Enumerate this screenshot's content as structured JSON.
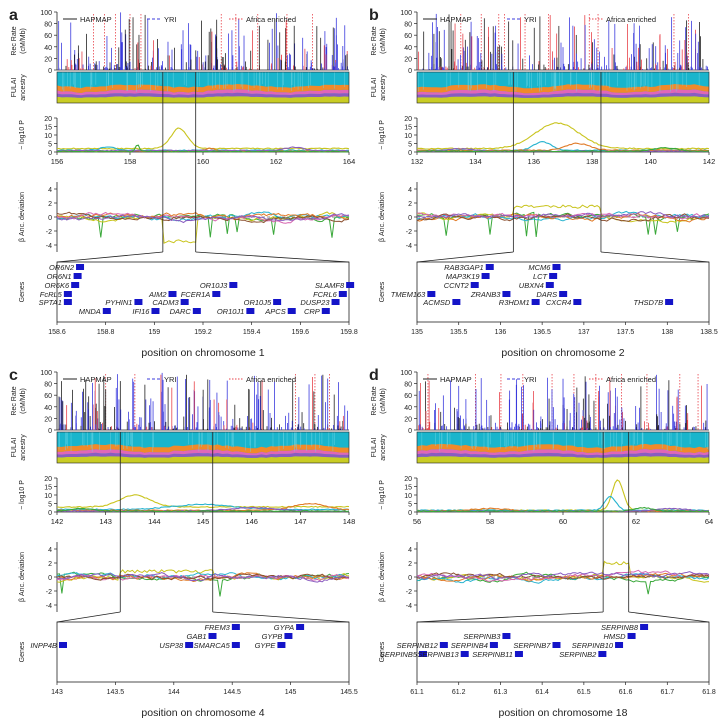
{
  "figure": {
    "legend": {
      "hapmap": "HAPMAP",
      "yri": "YRI",
      "africa": "Africa enriched"
    },
    "labels": {
      "rec_rate_1": "Rec Rate",
      "rec_rate_2": "(cM/Mb)",
      "fulai_1": "FULAI",
      "fulai_2": "ancestry",
      "logp": "− log10 P",
      "anc_dev": "β Anc. deviation",
      "genes": "Genes"
    },
    "colors": {
      "hapmap": "#222222",
      "yri": "#3b3bdd",
      "africa": "#e8434b",
      "fill_cyan": "#19b5cc",
      "fill_orange": "#f08a2a",
      "fill_pink": "#e066b8",
      "fill_purple": "#8a5cc0",
      "fill_yellow": "#c9cc24",
      "gene": "#1414c8",
      "gene_red": "#e02020",
      "series": [
        "#3aa83a",
        "#c9c41e",
        "#27b3cf",
        "#e07a27",
        "#d666b0",
        "#8b4f2f",
        "#8a5cc0",
        "#111111"
      ]
    }
  },
  "chart_data": [
    {
      "type": "line",
      "panel_label": "a",
      "xlabel": "position on chromosome 1",
      "overview": {
        "xlim": [
          156,
          164
        ],
        "xticks": [
          156,
          158,
          160,
          162,
          164
        ],
        "rec_ylim": [
          0,
          100
        ],
        "rec_yticks": [
          0,
          20,
          40,
          60,
          80,
          100
        ],
        "logp_ylim": [
          0,
          20
        ],
        "logp_yticks": [
          0,
          5,
          10,
          15,
          20
        ],
        "dev_ylim": [
          -5,
          5
        ],
        "dev_yticks": [
          -4,
          -2,
          0,
          2,
          4
        ],
        "zoom": [
          158.9,
          159.8
        ],
        "africa_x": [
          157.0,
          157.3,
          157.6,
          158.0,
          158.3,
          160.5,
          160.9,
          161.5,
          162.3,
          163.0
        ],
        "logp_series": [
          {
            "peak_x": 159.35,
            "width": 0.45,
            "height": 12,
            "base": 2.0
          },
          {
            "peak_x": 157.4,
            "width": 0.4,
            "height": 2,
            "base": 1.0
          },
          {
            "peak_x": 160.2,
            "width": 0.3,
            "height": 1.5,
            "base": 0.5
          },
          {
            "peak_x": 162.5,
            "width": 0.5,
            "height": 2,
            "base": 0.8
          },
          {
            "peak_x": 158.2,
            "width": 0.1,
            "height": 4,
            "base": 0.3
          }
        ],
        "dev_dip": {
          "x": [
            158.9,
            159.8
          ],
          "value": -3.5
        }
      },
      "genes": {
        "xlim": [
          158.6,
          159.8
        ],
        "xticks": [
          158.6,
          158.8,
          159,
          159.2,
          159.4,
          159.6,
          159.8
        ],
        "items": [
          {
            "name": "OR6N2",
            "x": 158.67,
            "row": 0,
            "red": false
          },
          {
            "name": "OR6N1",
            "x": 158.66,
            "row": 1,
            "red": false
          },
          {
            "name": "OR6K6",
            "x": 158.65,
            "row": 2,
            "red": false
          },
          {
            "name": "FcRL5",
            "x": 158.62,
            "row": 3,
            "red": false
          },
          {
            "name": "SPTA1",
            "x": 158.62,
            "row": 4,
            "red": false
          },
          {
            "name": "MNDA",
            "x": 158.78,
            "row": 5,
            "red": false
          },
          {
            "name": "PYHIN1",
            "x": 158.91,
            "row": 4,
            "red": false
          },
          {
            "name": "IFI16",
            "x": 158.98,
            "row": 5,
            "red": false
          },
          {
            "name": "AIM2",
            "x": 159.05,
            "row": 3,
            "red": false
          },
          {
            "name": "CADM3",
            "x": 159.1,
            "row": 4,
            "red": false
          },
          {
            "name": "DARC",
            "x": 159.15,
            "row": 5,
            "red": true
          },
          {
            "name": "FCER1A",
            "x": 159.23,
            "row": 3,
            "red": false
          },
          {
            "name": "OR10J3",
            "x": 159.3,
            "row": 2,
            "red": false
          },
          {
            "name": "OR10J1",
            "x": 159.37,
            "row": 5,
            "red": false
          },
          {
            "name": "OR10J5",
            "x": 159.48,
            "row": 4,
            "red": false
          },
          {
            "name": "APCS",
            "x": 159.54,
            "row": 5,
            "red": false
          },
          {
            "name": "CRP",
            "x": 159.68,
            "row": 5,
            "red": false
          },
          {
            "name": "DUSP23",
            "x": 159.72,
            "row": 4,
            "red": false
          },
          {
            "name": "FCRL6",
            "x": 159.75,
            "row": 3,
            "red": false
          },
          {
            "name": "SLAMF8",
            "x": 159.78,
            "row": 2,
            "red": false
          }
        ]
      }
    },
    {
      "type": "line",
      "panel_label": "b",
      "xlabel": "position on chromosome 2",
      "overview": {
        "xlim": [
          132,
          142
        ],
        "xticks": [
          132,
          134,
          136,
          138,
          140,
          142
        ],
        "rec_ylim": [
          0,
          100
        ],
        "rec_yticks": [
          0,
          20,
          40,
          60,
          80,
          100
        ],
        "logp_ylim": [
          0,
          20
        ],
        "logp_yticks": [
          0,
          5,
          10,
          15,
          20
        ],
        "dev_ylim": [
          -5,
          5
        ],
        "dev_yticks": [
          -4,
          -2,
          0,
          2,
          4
        ],
        "zoom": [
          135.3,
          138.3
        ],
        "africa_x": [
          133.5,
          134.2,
          134.8,
          135.0,
          135.7,
          136.5,
          137.9,
          138.2,
          140.8,
          141.3
        ],
        "logp_series": [
          {
            "peak_x": 136.8,
            "width": 1.5,
            "height": 15,
            "base": 2.0
          },
          {
            "peak_x": 136.3,
            "width": 0.6,
            "height": 5,
            "base": 1.0
          },
          {
            "peak_x": 137.5,
            "width": 0.8,
            "height": 4,
            "base": 1.0
          },
          {
            "peak_x": 133.5,
            "width": 0.8,
            "height": 1.5,
            "base": 0.5
          },
          {
            "peak_x": 140.5,
            "width": 0.8,
            "height": 2,
            "base": 0.5
          }
        ],
        "dev_dip": {
          "x": [
            135.3,
            138.3
          ],
          "value": 1.5
        }
      },
      "genes": {
        "xlim": [
          135,
          138.5
        ],
        "xticks": [
          135,
          135.5,
          136,
          136.5,
          137,
          137.5,
          138,
          138.5
        ],
        "items": [
          {
            "name": "RAB3GAP1",
            "x": 135.8,
            "row": 0,
            "red": false
          },
          {
            "name": "MAP3K19",
            "x": 135.75,
            "row": 1,
            "red": false
          },
          {
            "name": "CCNT2",
            "x": 135.62,
            "row": 2,
            "red": false
          },
          {
            "name": "TMEM163",
            "x": 135.1,
            "row": 3,
            "red": false
          },
          {
            "name": "ACMSD",
            "x": 135.4,
            "row": 4,
            "red": false
          },
          {
            "name": "ZRANB3",
            "x": 136.0,
            "row": 3,
            "red": false
          },
          {
            "name": "R3HDM1",
            "x": 136.35,
            "row": 4,
            "red": false
          },
          {
            "name": "UBXN4",
            "x": 136.52,
            "row": 2,
            "red": false
          },
          {
            "name": "MCM6",
            "x": 136.6,
            "row": 0,
            "red": true
          },
          {
            "name": "LCT",
            "x": 136.56,
            "row": 1,
            "red": true
          },
          {
            "name": "DARS",
            "x": 136.68,
            "row": 3,
            "red": false
          },
          {
            "name": "CXCR4",
            "x": 136.85,
            "row": 4,
            "red": false
          },
          {
            "name": "THSD7B",
            "x": 137.95,
            "row": 4,
            "red": false
          }
        ]
      }
    },
    {
      "type": "line",
      "panel_label": "c",
      "xlabel": "position on chromosome 4",
      "overview": {
        "xlim": [
          142,
          148
        ],
        "xticks": [
          142,
          143,
          144,
          145,
          146,
          147,
          148
        ],
        "rec_ylim": [
          0,
          100
        ],
        "rec_yticks": [
          0,
          20,
          40,
          60,
          80,
          100
        ],
        "logp_ylim": [
          0,
          20
        ],
        "logp_yticks": [
          0,
          5,
          10,
          15,
          20
        ],
        "dev_ylim": [
          -5,
          5
        ],
        "dev_yticks": [
          -4,
          -2,
          0,
          2,
          4
        ],
        "zoom": [
          143.3,
          145.2
        ],
        "africa_x": [
          143.0,
          143.6,
          146.9,
          147.3,
          147.6
        ],
        "logp_series": [
          {
            "peak_x": 143.6,
            "width": 0.6,
            "height": 7,
            "base": 3.0
          },
          {
            "peak_x": 145.0,
            "width": 1.2,
            "height": 3,
            "base": 1.5
          },
          {
            "peak_x": 147.2,
            "width": 0.7,
            "height": 4,
            "base": 1.0
          },
          {
            "peak_x": 146.0,
            "width": 1.0,
            "height": 2,
            "base": 0.5
          },
          {
            "peak_x": 142.5,
            "width": 0.5,
            "height": 1.5,
            "base": 0.5
          }
        ],
        "dev_dip": {
          "x": [
            143.3,
            145.2
          ],
          "value": 0.8
        }
      },
      "genes": {
        "xlim": [
          143,
          145.5
        ],
        "xticks": [
          143,
          143.5,
          144,
          144.5,
          145,
          145.5
        ],
        "items": [
          {
            "name": "FREM3",
            "x": 144.48,
            "row": 0,
            "red": false
          },
          {
            "name": "GYPA",
            "x": 145.03,
            "row": 0,
            "red": true
          },
          {
            "name": "GAB1",
            "x": 144.28,
            "row": 1,
            "red": false
          },
          {
            "name": "GYPB",
            "x": 144.93,
            "row": 1,
            "red": true
          },
          {
            "name": "INPP4B",
            "x": 143.0,
            "row": 2,
            "red": false
          },
          {
            "name": "USP38",
            "x": 144.08,
            "row": 2,
            "red": false
          },
          {
            "name": "SMARCA5",
            "x": 144.48,
            "row": 2,
            "red": false
          },
          {
            "name": "GYPE",
            "x": 144.87,
            "row": 2,
            "red": true
          }
        ]
      }
    },
    {
      "type": "line",
      "panel_label": "d",
      "xlabel": "position on chromosome 18",
      "overview": {
        "xlim": [
          56,
          64
        ],
        "xticks": [
          56,
          58,
          60,
          62,
          64
        ],
        "rec_ylim": [
          0,
          100
        ],
        "rec_yticks": [
          0,
          20,
          40,
          60,
          80,
          100
        ],
        "logp_ylim": [
          0,
          20
        ],
        "logp_yticks": [
          0,
          5,
          10,
          15,
          20
        ],
        "dev_ylim": [
          -5,
          5
        ],
        "dev_yticks": [
          -4,
          -2,
          0,
          2,
          4
        ],
        "zoom": [
          61.1,
          61.8
        ],
        "africa_x": [
          56.3,
          57.6,
          58.3,
          58.9,
          59.7,
          60.3,
          60.9,
          61.6,
          62.3,
          63.2,
          63.7
        ],
        "logp_series": [
          {
            "peak_x": 61.5,
            "width": 0.3,
            "height": 18,
            "base": 1.0
          },
          {
            "peak_x": 61.3,
            "width": 0.3,
            "height": 8,
            "base": 1.0
          },
          {
            "peak_x": 58.0,
            "width": 1.0,
            "height": 1.5,
            "base": 0.5
          },
          {
            "peak_x": 63.0,
            "width": 0.8,
            "height": 1.5,
            "base": 0.5
          },
          {
            "peak_x": 62.2,
            "width": 0.5,
            "height": 2,
            "base": 0.5
          }
        ],
        "dev_dip": {
          "x": [
            61.1,
            61.8
          ],
          "value": 2.0
        }
      },
      "genes": {
        "xlim": [
          61.1,
          61.8
        ],
        "xticks": [
          61.1,
          61.2,
          61.3,
          61.4,
          61.5,
          61.6,
          61.7,
          61.8
        ],
        "items": [
          {
            "name": "SERPINB8",
            "x": 61.63,
            "row": 0,
            "red": false
          },
          {
            "name": "SERPINB3",
            "x": 61.3,
            "row": 1,
            "red": false
          },
          {
            "name": "HMSD",
            "x": 61.6,
            "row": 1,
            "red": false
          },
          {
            "name": "SERPINB12",
            "x": 61.15,
            "row": 2,
            "red": false
          },
          {
            "name": "SERPINB4",
            "x": 61.27,
            "row": 2,
            "red": false
          },
          {
            "name": "SERPINB7",
            "x": 61.42,
            "row": 2,
            "red": false
          },
          {
            "name": "SERPINB10",
            "x": 61.57,
            "row": 2,
            "red": false
          },
          {
            "name": "SERPINB5",
            "x": 61.1,
            "row": 3,
            "red": false
          },
          {
            "name": "SERPINB13",
            "x": 61.2,
            "row": 3,
            "red": false
          },
          {
            "name": "SERPINB11",
            "x": 61.33,
            "row": 3,
            "red": true
          },
          {
            "name": "SERPINB2",
            "x": 61.53,
            "row": 3,
            "red": false
          }
        ]
      }
    }
  ]
}
